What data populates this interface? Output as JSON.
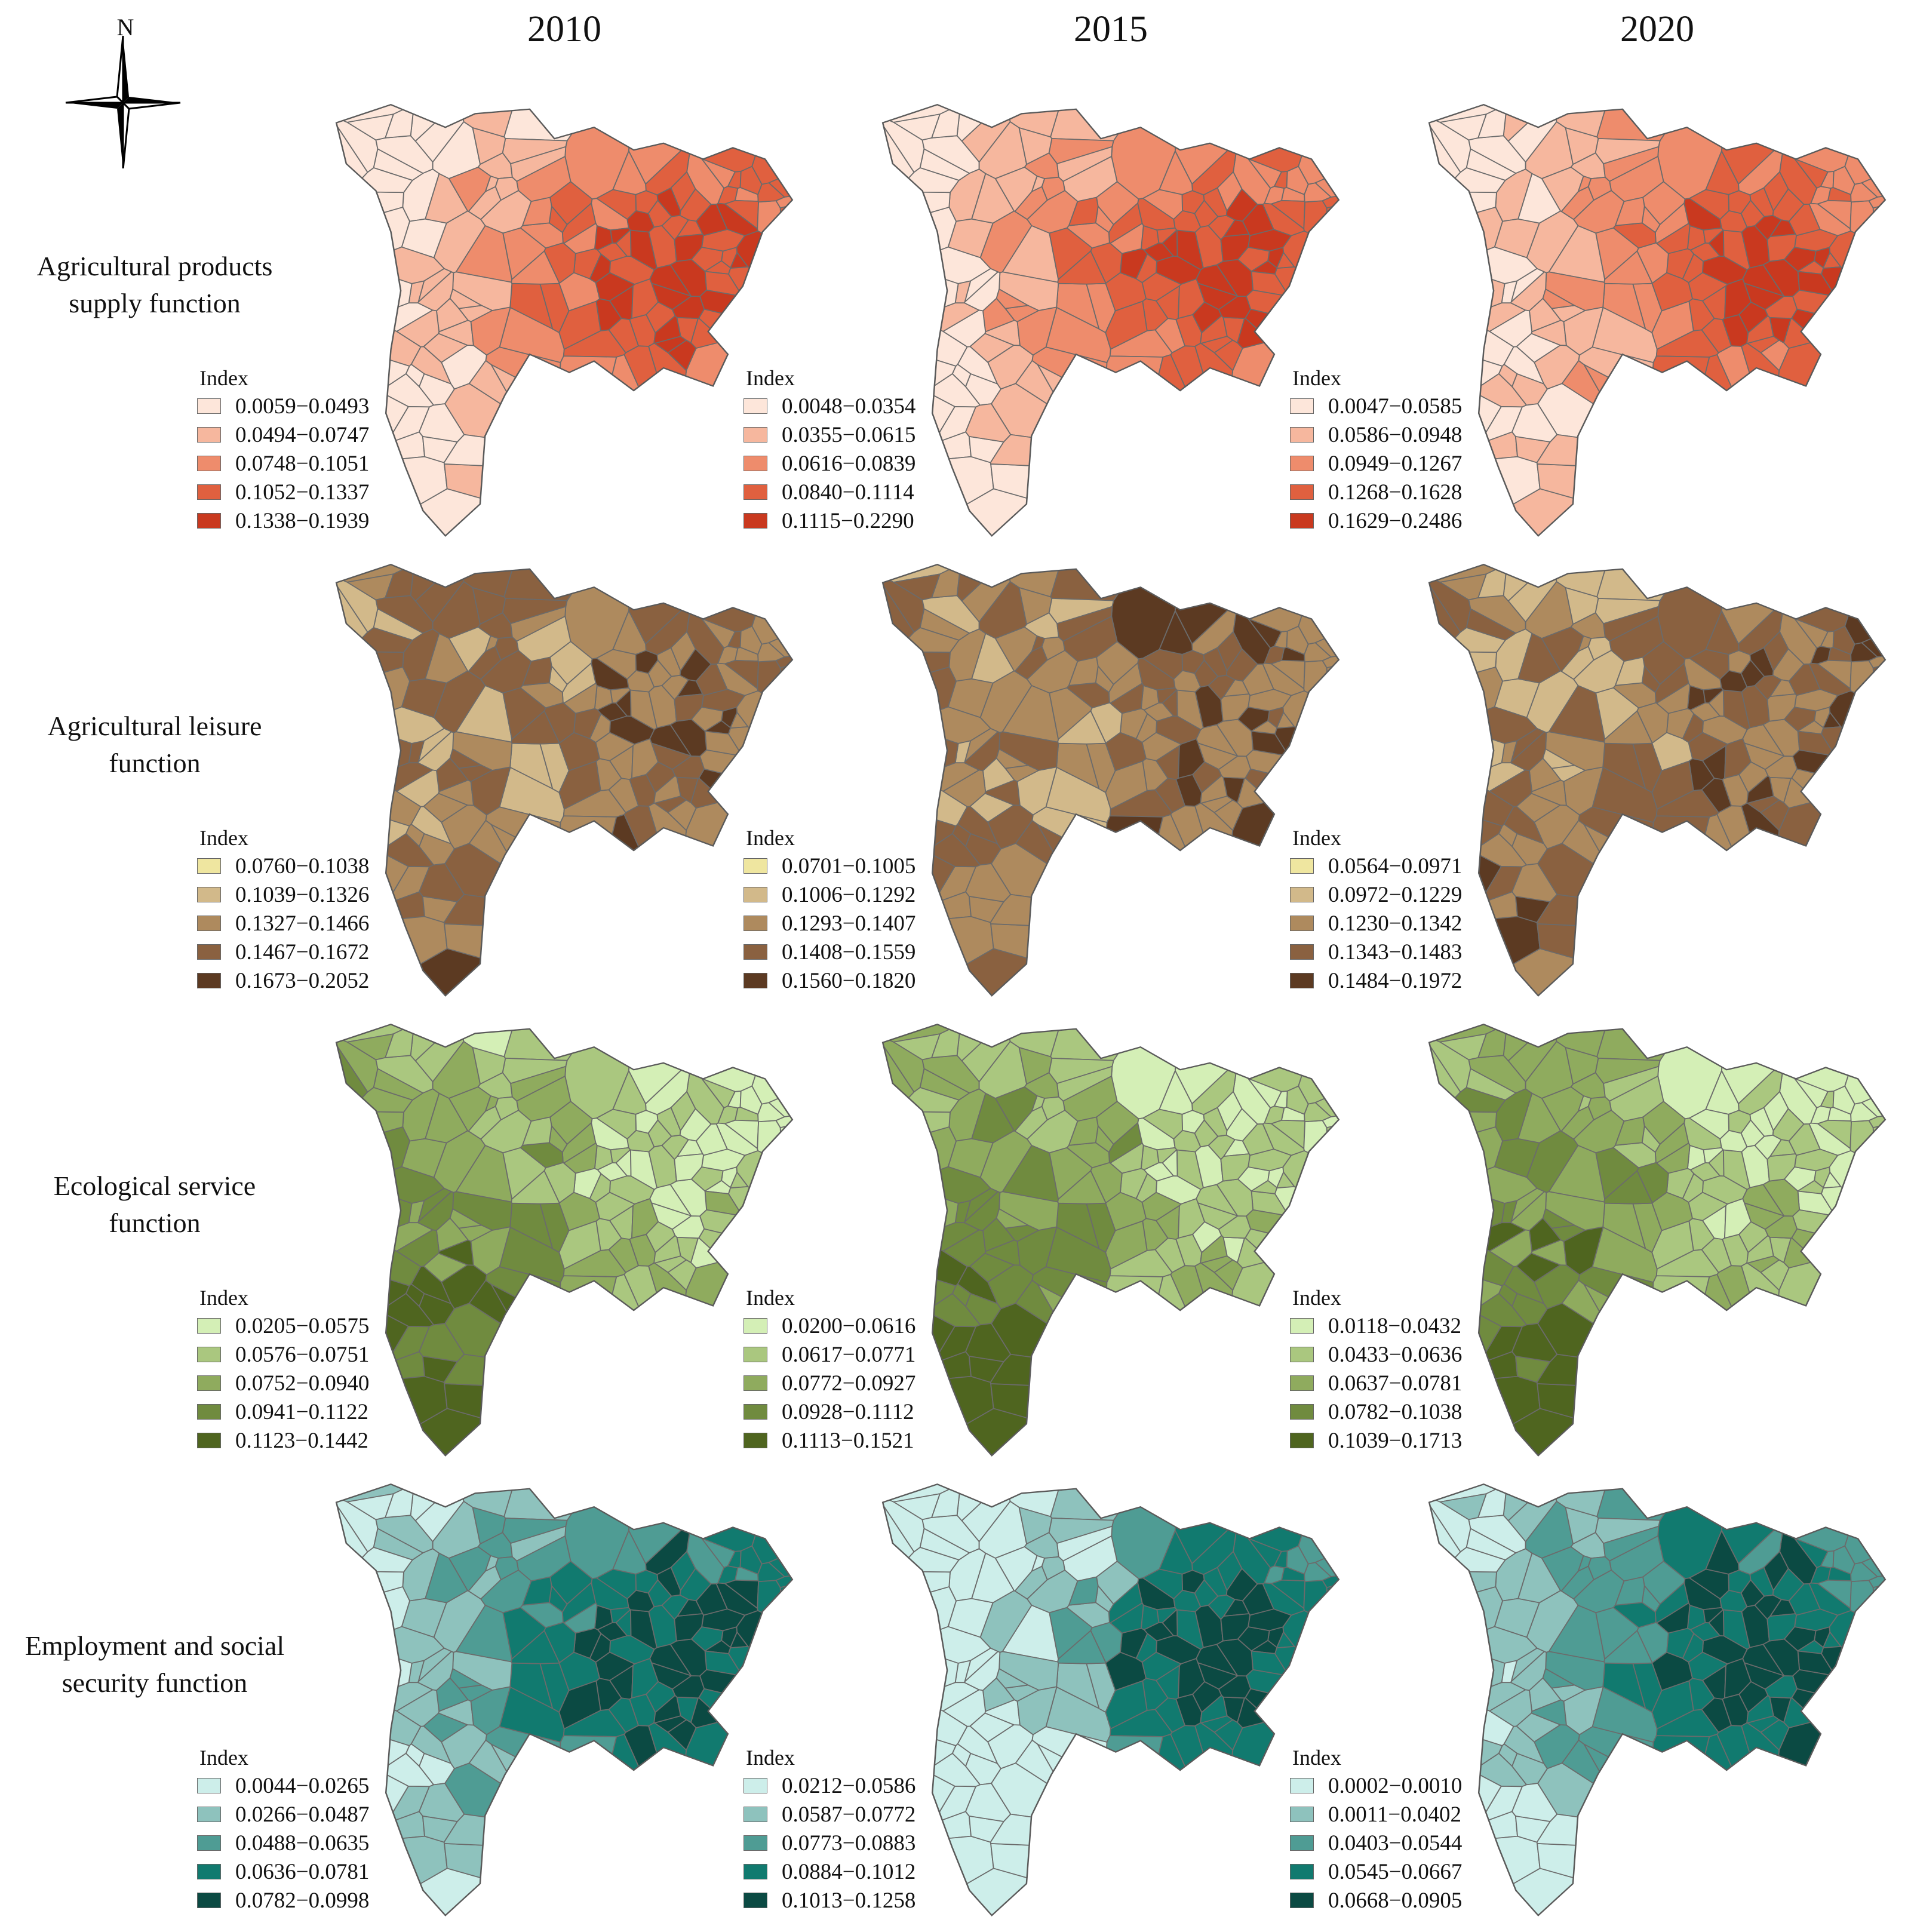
{
  "years": [
    "2010",
    "2015",
    "2020"
  ],
  "north_arrow": {
    "letter": "N",
    "icon": "north-arrow-icon"
  },
  "legend_title": "Index",
  "rows": [
    {
      "label_lines": [
        "Agricultural products",
        "supply function"
      ],
      "colors": [
        "#fde6da",
        "#f6b79e",
        "#ee8c6c",
        "#e0603f",
        "#c9391f"
      ],
      "legends": [
        [
          "0.0059−0.0493",
          "0.0494−0.0747",
          "0.0748−0.1051",
          "0.1052−0.1337",
          "0.1338−0.1939"
        ],
        [
          "0.0048−0.0354",
          "0.0355−0.0615",
          "0.0616−0.0839",
          "0.0840−0.1114",
          "0.1115−0.2290"
        ],
        [
          "0.0047−0.0585",
          "0.0586−0.0948",
          "0.0949−0.1267",
          "0.1268−0.1628",
          "0.1629−0.2486"
        ]
      ]
    },
    {
      "label_lines": [
        "Agricultural leisure",
        "function"
      ],
      "colors": [
        "#efe6a0",
        "#d2b98a",
        "#ae8a5e",
        "#8a6140",
        "#5c3a22"
      ],
      "legends": [
        [
          "0.0760−0.1038",
          "0.1039−0.1326",
          "0.1327−0.1466",
          "0.1467−0.1672",
          "0.1673−0.2052"
        ],
        [
          "0.0701−0.1005",
          "0.1006−0.1292",
          "0.1293−0.1407",
          "0.1408−0.1559",
          "0.1560−0.1820"
        ],
        [
          "0.0564−0.0971",
          "0.0972−0.1229",
          "0.1230−0.1342",
          "0.1343−0.1483",
          "0.1484−0.1972"
        ]
      ]
    },
    {
      "label_lines": [
        "Ecological service",
        "function"
      ],
      "colors": [
        "#d4efb6",
        "#aac77f",
        "#8fab5e",
        "#708b3f",
        "#4f651f"
      ],
      "legends": [
        [
          "0.0205−0.0575",
          "0.0576−0.0751",
          "0.0752−0.0940",
          "0.0941−0.1122",
          "0.1123−0.1442"
        ],
        [
          "0.0200−0.0616",
          "0.0617−0.0771",
          "0.0772−0.0927",
          "0.0928−0.1112",
          "0.1113−0.1521"
        ],
        [
          "0.0118−0.0432",
          "0.0433−0.0636",
          "0.0637−0.0781",
          "0.0782−0.1038",
          "0.1039−0.1713"
        ]
      ]
    },
    {
      "label_lines": [
        "Employment and social",
        "security function"
      ],
      "colors": [
        "#cdeeea",
        "#8ec2bd",
        "#4f9c94",
        "#117a6f",
        "#0b4a43"
      ],
      "legends": [
        [
          "0.0044−0.0265",
          "0.0266−0.0487",
          "0.0488−0.0635",
          "0.0636−0.0781",
          "0.0782−0.0998"
        ],
        [
          "0.0212−0.0586",
          "0.0587−0.0772",
          "0.0773−0.0883",
          "0.0884−0.1012",
          "0.1013−0.1258"
        ],
        [
          "0.0002−0.0010",
          "0.0011−0.0402",
          "0.0403−0.0544",
          "0.0545−0.0667",
          "0.0668−0.0905"
        ]
      ]
    }
  ]
}
